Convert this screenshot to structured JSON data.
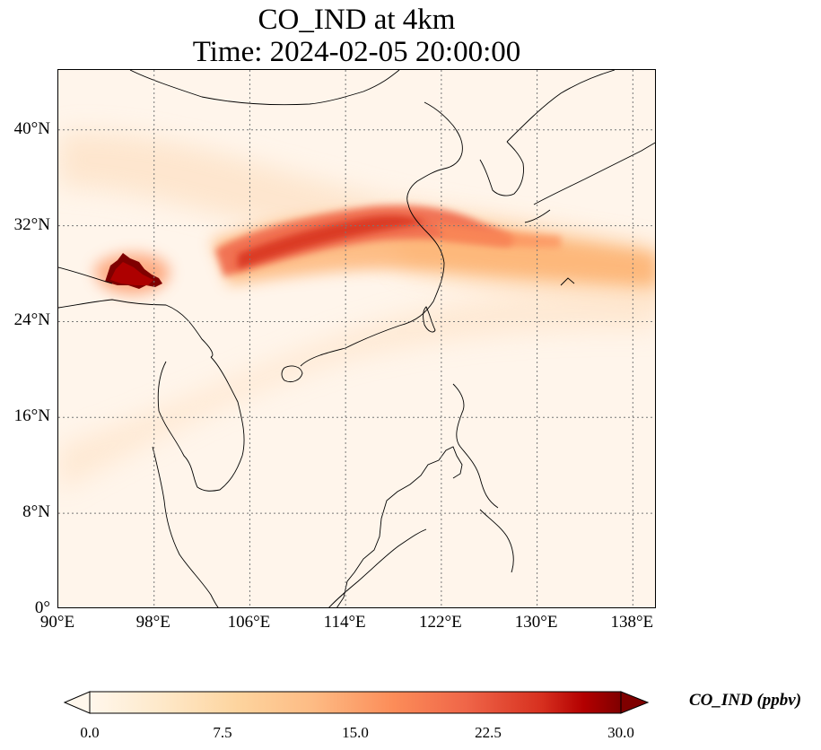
{
  "title": {
    "line1": "CO_IND at 4km",
    "line2": "Time: 2024-02-05 20:00:00"
  },
  "map": {
    "extent": {
      "lon": [
        90,
        140
      ],
      "lat": [
        0,
        45
      ]
    },
    "lat_ticks": [
      {
        "value": 0,
        "label": "0°"
      },
      {
        "value": 8,
        "label": "8°N"
      },
      {
        "value": 16,
        "label": "16°N"
      },
      {
        "value": 24,
        "label": "24°N"
      },
      {
        "value": 32,
        "label": "32°N"
      },
      {
        "value": 40,
        "label": "40°N"
      }
    ],
    "lon_ticks": [
      {
        "value": 90,
        "label": "90°E"
      },
      {
        "value": 98,
        "label": "98°E"
      },
      {
        "value": 106,
        "label": "106°E"
      },
      {
        "value": 114,
        "label": "114°E"
      },
      {
        "value": 122,
        "label": "122°E"
      },
      {
        "value": 130,
        "label": "130°E"
      },
      {
        "value": 138,
        "label": "138°E"
      }
    ],
    "gridlines": "dotted",
    "colormap": "OrRd",
    "colors": {
      "low": "#fff5eb",
      "mid": "#fdae6b",
      "high": "#e34a33",
      "max": "#7f0000",
      "coast": "#000000",
      "grid": "#777777"
    }
  },
  "colorbar": {
    "label": "CO_IND (ppbv)",
    "min": 0.0,
    "max": 30.0,
    "ticks": [
      "0.0",
      "7.5",
      "15.0",
      "22.5",
      "30.0"
    ],
    "extend": "both"
  }
}
